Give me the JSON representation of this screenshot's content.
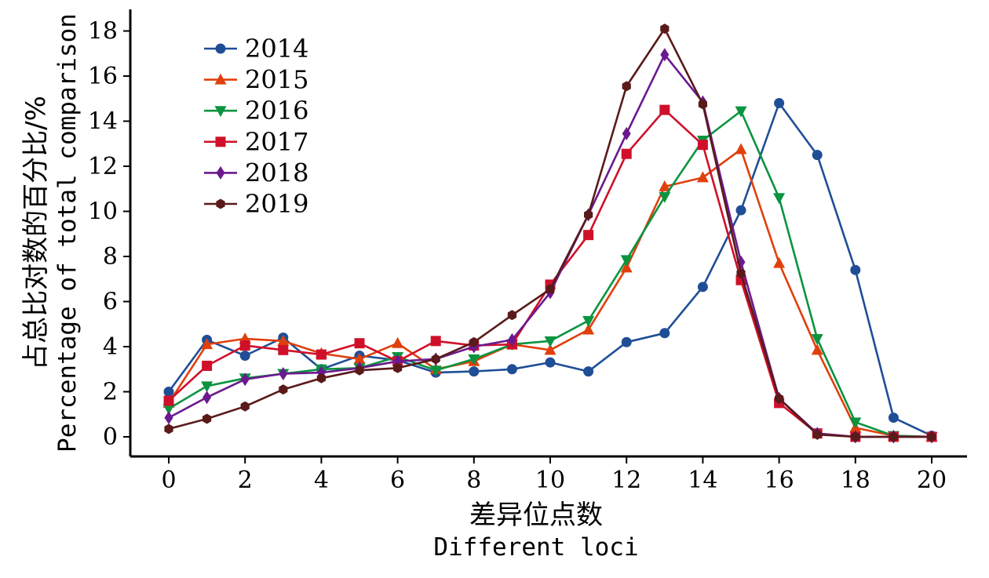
{
  "chart_data": {
    "type": "line",
    "title": "",
    "xlabel_zh": "差异位点数",
    "xlabel_en": "Different loci",
    "ylabel_zh": "占总比对数的百分比/%",
    "ylabel_en": "Percentage of total comparison",
    "xlim": [
      -1,
      21
    ],
    "ylim": [
      -0.8,
      19
    ],
    "xticks": [
      0,
      2,
      4,
      6,
      8,
      10,
      12,
      14,
      16,
      18,
      20
    ],
    "yticks": [
      0,
      2,
      4,
      6,
      8,
      10,
      12,
      14,
      16,
      18
    ],
    "legend_position": "top-left",
    "x": [
      0,
      1,
      2,
      3,
      4,
      5,
      6,
      7,
      8,
      9,
      10,
      11,
      12,
      13,
      14,
      15,
      16,
      17,
      18,
      19,
      20
    ],
    "series": [
      {
        "name": "2014",
        "color": "#1f4e96",
        "marker": "circle",
        "values": [
          2.0,
          4.3,
          3.6,
          4.4,
          3.0,
          3.6,
          3.4,
          2.85,
          2.9,
          3.0,
          3.3,
          2.9,
          4.2,
          4.6,
          6.65,
          10.05,
          14.8,
          12.5,
          7.4,
          0.85,
          0.05
        ]
      },
      {
        "name": "2015",
        "color": "#e0400c",
        "marker": "triangle-up",
        "values": [
          1.5,
          4.1,
          4.35,
          4.25,
          3.7,
          3.45,
          4.15,
          3.0,
          3.35,
          4.1,
          3.85,
          4.75,
          7.5,
          11.1,
          11.5,
          12.75,
          7.7,
          3.85,
          0.4,
          0.05,
          0.0
        ]
      },
      {
        "name": "2016",
        "color": "#0a9440",
        "marker": "triangle-down",
        "values": [
          1.25,
          2.25,
          2.6,
          2.8,
          3.0,
          3.05,
          3.55,
          2.95,
          3.45,
          4.1,
          4.25,
          5.15,
          7.85,
          10.65,
          13.15,
          14.45,
          10.6,
          4.35,
          0.65,
          0.05,
          0.0
        ]
      },
      {
        "name": "2017",
        "color": "#d0102a",
        "marker": "square",
        "values": [
          1.6,
          3.15,
          4.05,
          3.85,
          3.65,
          4.15,
          3.35,
          4.25,
          4.05,
          4.1,
          6.75,
          8.95,
          12.55,
          14.5,
          12.95,
          6.95,
          1.5,
          0.15,
          0.0,
          0.0,
          0.0
        ]
      },
      {
        "name": "2018",
        "color": "#6a1a8e",
        "marker": "diamond",
        "values": [
          0.85,
          1.75,
          2.55,
          2.8,
          2.85,
          3.05,
          3.35,
          3.45,
          4.0,
          4.3,
          6.4,
          9.85,
          13.45,
          16.95,
          14.85,
          7.75,
          1.7,
          0.15,
          0.0,
          0.0,
          0.0
        ]
      },
      {
        "name": "2019",
        "color": "#5a1a1a",
        "marker": "hexagon",
        "values": [
          0.35,
          0.8,
          1.35,
          2.1,
          2.6,
          2.95,
          3.05,
          3.45,
          4.2,
          5.4,
          6.55,
          9.85,
          15.55,
          18.1,
          14.75,
          7.25,
          1.7,
          0.1,
          0.0,
          0.0,
          0.0
        ]
      }
    ]
  }
}
